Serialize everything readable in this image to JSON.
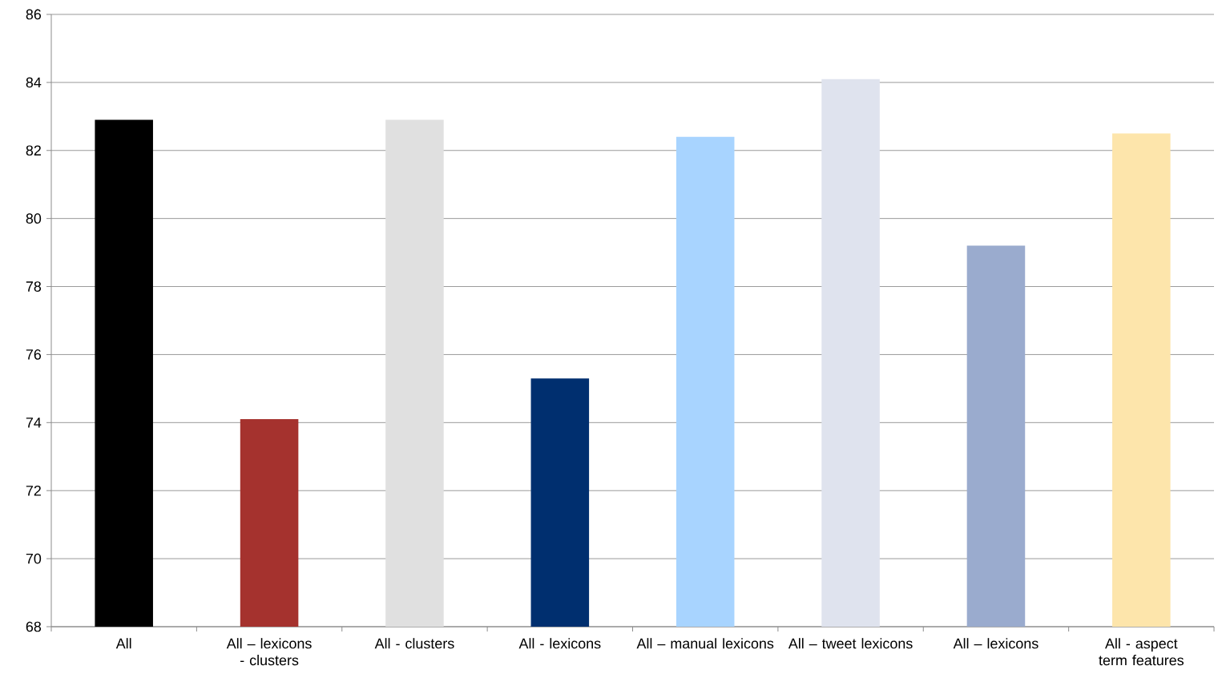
{
  "chart_data": {
    "type": "bar",
    "categories": [
      "All",
      "All – lexicons - clusters",
      "All - clusters",
      "All - lexicons",
      "All – manual lexicons",
      "All – tweet lexicons",
      "All – lexicons",
      "All - aspect term features"
    ],
    "values": [
      82.9,
      74.1,
      82.9,
      75.3,
      82.4,
      84.1,
      79.2,
      82.5
    ],
    "colors": [
      "#000000",
      "#a5322e",
      "#e0e0e0",
      "#002f6f",
      "#a8d4ff",
      "#dfe3ee",
      "#9aabce",
      "#fde5ab"
    ],
    "ylim": [
      68,
      86
    ],
    "yticks": [
      68,
      70,
      72,
      74,
      76,
      78,
      80,
      82,
      84,
      86
    ],
    "grid": "y"
  }
}
